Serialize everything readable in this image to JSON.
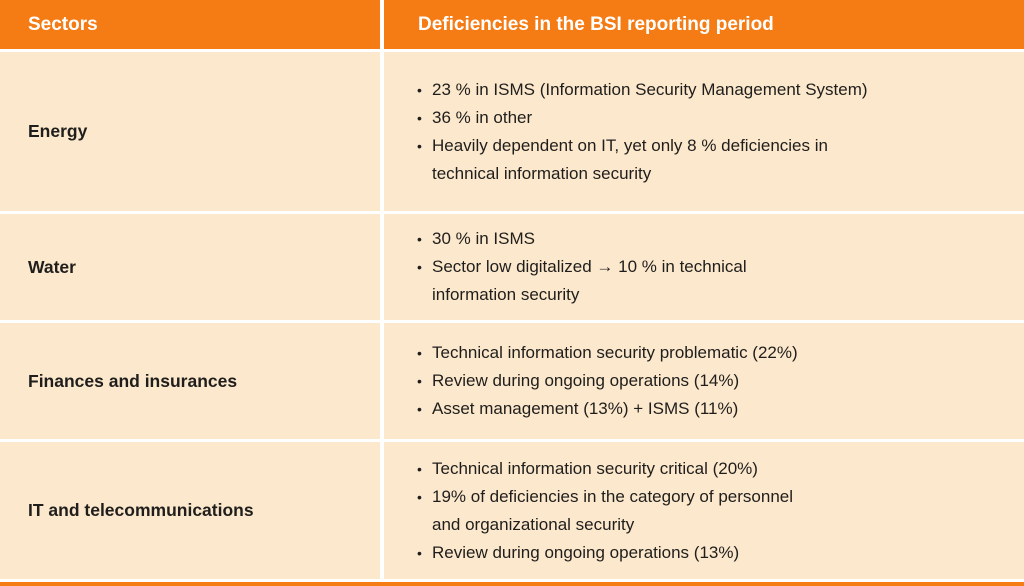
{
  "bullet_char": "•",
  "colors": {
    "accent_orange": "#f57c14",
    "row_background": "#fce8cc",
    "divider": "#ffffff",
    "header_text": "#ffffff",
    "body_text": "#1f1e1c"
  },
  "header": {
    "sectors": "Sectors",
    "deficiencies": "Deficiencies in the BSI reporting period"
  },
  "rows": [
    {
      "sector": "Energy",
      "bullets": [
        "23 % in ISMS (Information Security Management System)",
        "36 % in other",
        "Heavily dependent on IT, yet only 8 % deficiencies in\ntechnical information security"
      ]
    },
    {
      "sector": "Water",
      "bullets": [
        "30 % in ISMS",
        "Sector low digitalized → 10 % in technical\ninformation security"
      ]
    },
    {
      "sector": "Finances and insurances",
      "bullets": [
        "Technical information security problematic (22%)",
        "Review during ongoing operations (14%)",
        "Asset management (13%) + ISMS (11%)"
      ]
    },
    {
      "sector": "IT and telecommunications",
      "bullets": [
        "Technical information security critical (20%)",
        "19% of deficiencies in the category of personnel\nand organizational security",
        "Review during ongoing operations (13%)"
      ]
    }
  ]
}
